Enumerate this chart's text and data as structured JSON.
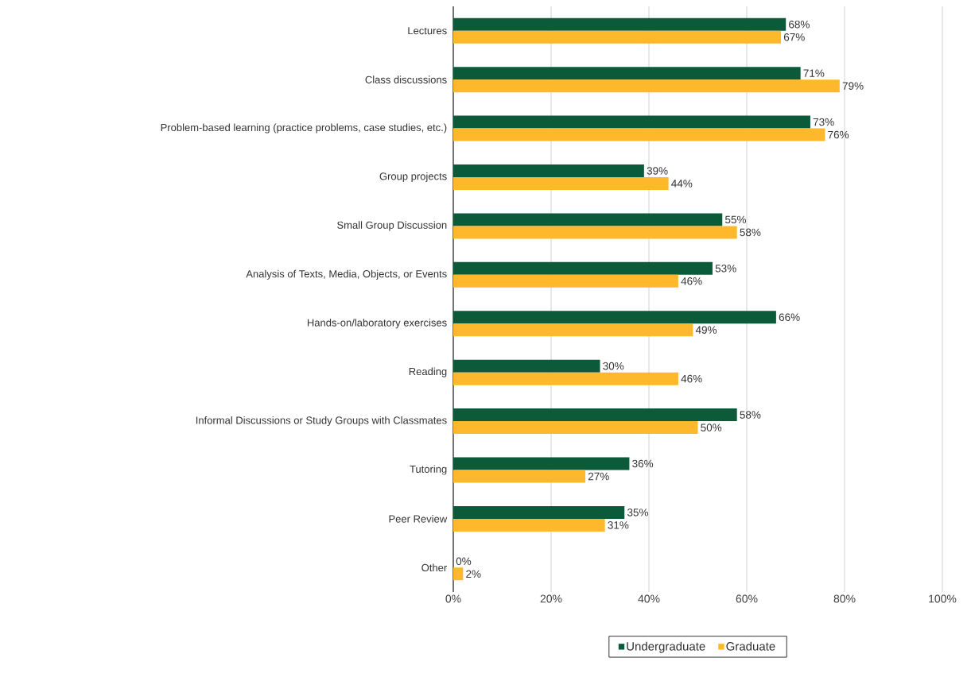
{
  "chart_data": {
    "type": "bar",
    "orientation": "horizontal",
    "categories": [
      "Lectures",
      "Class discussions",
      "Problem-based learning (practice problems, case studies, etc.)",
      "Group projects",
      "Small Group Discussion",
      "Analysis of Texts, Media, Objects, or Events",
      "Hands-on/laboratory exercises",
      "Reading",
      "Informal Discussions or Study Groups with Classmates",
      "Tutoring",
      "Peer Review",
      "Other"
    ],
    "series": [
      {
        "name": "Undergraduate",
        "color": "#0b5b3b",
        "values": [
          68,
          71,
          73,
          39,
          55,
          53,
          66,
          30,
          58,
          36,
          35,
          0
        ],
        "value_labels": [
          "68%",
          "71%",
          "73%",
          "39%",
          "55%",
          "53%",
          "66%",
          "30%",
          "58%",
          "36%",
          "35%",
          "0%"
        ]
      },
      {
        "name": "Graduate",
        "color": "#fdb92b",
        "values": [
          67,
          79,
          76,
          44,
          58,
          46,
          49,
          46,
          50,
          27,
          31,
          2
        ],
        "value_labels": [
          "67%",
          "79%",
          "76%",
          "44%",
          "58%",
          "46%",
          "49%",
          "46%",
          "50%",
          "27%",
          "31%",
          "2%"
        ]
      }
    ],
    "xlim": [
      0,
      100
    ],
    "xticks": [
      {
        "value": 0,
        "label": "0%"
      },
      {
        "value": 20,
        "label": "20%"
      },
      {
        "value": 40,
        "label": "40%"
      },
      {
        "value": 60,
        "label": "60%"
      },
      {
        "value": 80,
        "label": "80%"
      },
      {
        "value": 100,
        "label": "100%"
      }
    ],
    "grid": "x",
    "legend": "bottom"
  }
}
